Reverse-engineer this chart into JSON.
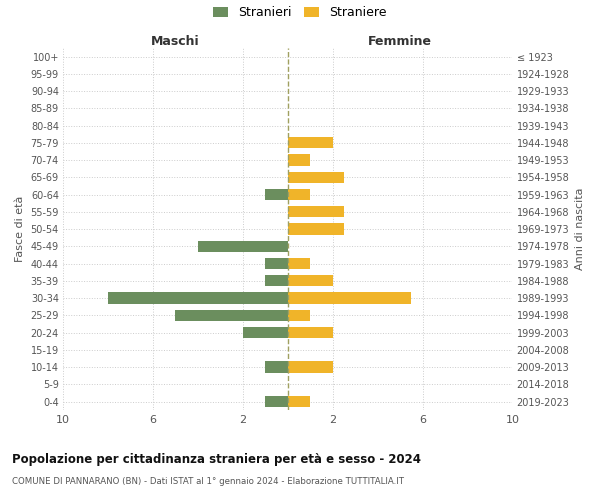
{
  "age_groups": [
    "100+",
    "95-99",
    "90-94",
    "85-89",
    "80-84",
    "75-79",
    "70-74",
    "65-69",
    "60-64",
    "55-59",
    "50-54",
    "45-49",
    "40-44",
    "35-39",
    "30-34",
    "25-29",
    "20-24",
    "15-19",
    "10-14",
    "5-9",
    "0-4"
  ],
  "birth_years": [
    "≤ 1923",
    "1924-1928",
    "1929-1933",
    "1934-1938",
    "1939-1943",
    "1944-1948",
    "1949-1953",
    "1954-1958",
    "1959-1963",
    "1964-1968",
    "1969-1973",
    "1974-1978",
    "1979-1983",
    "1984-1988",
    "1989-1993",
    "1994-1998",
    "1999-2003",
    "2004-2008",
    "2009-2013",
    "2014-2018",
    "2019-2023"
  ],
  "maschi": [
    0,
    0,
    0,
    0,
    0,
    0,
    0,
    0,
    1,
    0,
    0,
    4,
    1,
    1,
    8,
    5,
    2,
    0,
    1,
    0,
    1
  ],
  "femmine": [
    0,
    0,
    0,
    0,
    0,
    2,
    1,
    2.5,
    1,
    2.5,
    2.5,
    0,
    1,
    2,
    5.5,
    1,
    2,
    0,
    2,
    0,
    1
  ],
  "color_maschi": "#6b8e5e",
  "color_femmine": "#f0b429",
  "background_color": "#ffffff",
  "grid_color": "#cccccc",
  "dashed_line_color": "#a0a060",
  "title": "Popolazione per cittadinanza straniera per età e sesso - 2024",
  "subtitle": "COMUNE DI PANNARANO (BN) - Dati ISTAT al 1° gennaio 2024 - Elaborazione TUTTITALIA.IT",
  "xlabel_left": "Maschi",
  "xlabel_right": "Femmine",
  "ylabel_left": "Fasce di età",
  "ylabel_right": "Anni di nascita",
  "legend_stranieri": "Stranieri",
  "legend_straniere": "Straniere",
  "bar_height": 0.65
}
